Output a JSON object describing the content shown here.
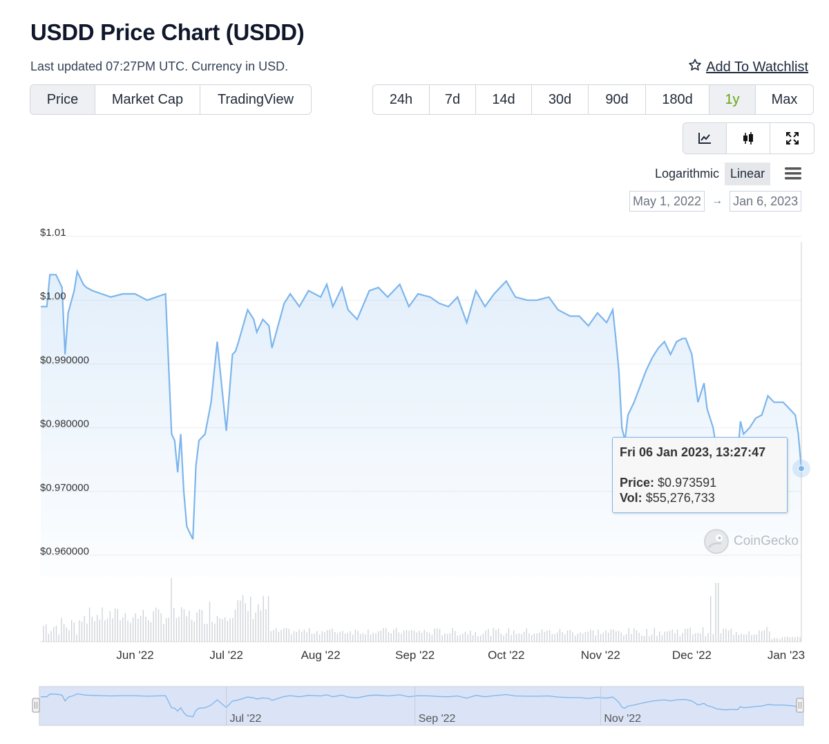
{
  "header": {
    "title": "USDD Price Chart (USDD)",
    "updated": "Last updated 07:27PM UTC. Currency in USD.",
    "watchlist": "Add To Watchlist"
  },
  "chart_types": [
    "Price",
    "Market Cap",
    "TradingView"
  ],
  "active_type": "Price",
  "ranges": [
    "24h",
    "7d",
    "14d",
    "30d",
    "90d",
    "180d",
    "1y",
    "Max"
  ],
  "active_range": "1y",
  "icons": [
    "line-chart-icon",
    "candlestick-icon",
    "fullscreen-icon"
  ],
  "scale": {
    "log": "Logarithmic",
    "linear": "Linear",
    "active": "Linear"
  },
  "date_range": {
    "from": "May 1, 2022",
    "to": "Jan 6, 2023"
  },
  "colors": {
    "line": "#7cb5ec",
    "active_range": "#65a30d",
    "volume": "#cfd3d8"
  },
  "tooltip": {
    "date": "Fri 06 Jan 2023, 13:27:47",
    "price_label": "Price:",
    "price": "$0.973591",
    "vol_label": "Vol:",
    "vol": "$55,276,733"
  },
  "watermark": "CoinGecko",
  "chart_data": {
    "type": "line",
    "title": "USDD Price Chart (USDD)",
    "x_range": [
      "2022-05-01",
      "2023-01-06"
    ],
    "ylim": [
      0.96,
      1.01
    ],
    "y_ticks": [
      {
        "value": 1.01,
        "label": "$1.01"
      },
      {
        "value": 1.0,
        "label": "$1.00"
      },
      {
        "value": 0.99,
        "label": "$0.990000"
      },
      {
        "value": 0.98,
        "label": "$0.980000"
      },
      {
        "value": 0.97,
        "label": "$0.970000"
      },
      {
        "value": 0.96,
        "label": "$0.960000"
      }
    ],
    "x_ticks": [
      {
        "date": "2022-06-01",
        "label": "Jun '22"
      },
      {
        "date": "2022-07-01",
        "label": "Jul '22"
      },
      {
        "date": "2022-08-01",
        "label": "Aug '22"
      },
      {
        "date": "2022-09-01",
        "label": "Sep '22"
      },
      {
        "date": "2022-10-01",
        "label": "Oct '22"
      },
      {
        "date": "2022-11-01",
        "label": "Nov '22"
      },
      {
        "date": "2022-12-01",
        "label": "Dec '22"
      },
      {
        "date": "2023-01-01",
        "label": "Jan '23"
      }
    ],
    "navigator_ticks": [
      {
        "date": "2022-07-01",
        "label": "Jul '22"
      },
      {
        "date": "2022-09-01",
        "label": "Sep '22"
      },
      {
        "date": "2022-11-01",
        "label": "Nov '22"
      }
    ],
    "series": [
      {
        "x": [
          "2022-05-01",
          "2022-05-03",
          "2022-05-04",
          "2022-05-06",
          "2022-05-08",
          "2022-05-09",
          "2022-05-10",
          "2022-05-12",
          "2022-05-13",
          "2022-05-15",
          "2022-05-16",
          "2022-05-18",
          "2022-05-21",
          "2022-05-24",
          "2022-05-28",
          "2022-06-01",
          "2022-06-05",
          "2022-06-08",
          "2022-06-11",
          "2022-06-13",
          "2022-06-14",
          "2022-06-15",
          "2022-06-16",
          "2022-06-17",
          "2022-06-18",
          "2022-06-20",
          "2022-06-21",
          "2022-06-22",
          "2022-06-24",
          "2022-06-26",
          "2022-06-28",
          "2022-07-01",
          "2022-07-03",
          "2022-07-04",
          "2022-07-05",
          "2022-07-08",
          "2022-07-10",
          "2022-07-11",
          "2022-07-13",
          "2022-07-15",
          "2022-07-16",
          "2022-07-20",
          "2022-07-22",
          "2022-07-25",
          "2022-07-28",
          "2022-08-01",
          "2022-08-03",
          "2022-08-05",
          "2022-08-08",
          "2022-08-10",
          "2022-08-13",
          "2022-08-17",
          "2022-08-20",
          "2022-08-23",
          "2022-08-27",
          "2022-08-30",
          "2022-09-02",
          "2022-09-06",
          "2022-09-09",
          "2022-09-12",
          "2022-09-15",
          "2022-09-18",
          "2022-09-21",
          "2022-09-24",
          "2022-09-27",
          "2022-10-01",
          "2022-10-04",
          "2022-10-08",
          "2022-10-11",
          "2022-10-15",
          "2022-10-18",
          "2022-10-22",
          "2022-10-25",
          "2022-10-28",
          "2022-10-31",
          "2022-11-03",
          "2022-11-05",
          "2022-11-06",
          "2022-11-07",
          "2022-11-08",
          "2022-11-09",
          "2022-11-10",
          "2022-11-12",
          "2022-11-14",
          "2022-11-16",
          "2022-11-18",
          "2022-11-20",
          "2022-11-22",
          "2022-11-24",
          "2022-11-26",
          "2022-11-28",
          "2022-11-29",
          "2022-12-01",
          "2022-12-03",
          "2022-12-05",
          "2022-12-06",
          "2022-12-08",
          "2022-12-09",
          "2022-12-10",
          "2022-12-12",
          "2022-12-13",
          "2022-12-14",
          "2022-12-16",
          "2022-12-17",
          "2022-12-18",
          "2022-12-20",
          "2022-12-22",
          "2022-12-24",
          "2022-12-26",
          "2022-12-28",
          "2022-12-31",
          "2023-01-02",
          "2023-01-04",
          "2023-01-05",
          "2023-01-06"
        ],
        "y": [
          0.999,
          0.999,
          1.004,
          1.004,
          1.002,
          0.9915,
          0.998,
          1.0015,
          1.0045,
          1.0025,
          1.002,
          1.0015,
          1.001,
          1.0005,
          1.001,
          1.001,
          1.0,
          1.0005,
          1.001,
          0.979,
          0.978,
          0.973,
          0.979,
          0.97,
          0.9645,
          0.9625,
          0.974,
          0.978,
          0.979,
          0.984,
          0.9935,
          0.9795,
          0.9915,
          0.992,
          0.9935,
          0.9985,
          0.997,
          0.995,
          0.997,
          0.996,
          0.9925,
          0.9995,
          1.001,
          0.999,
          1.0015,
          1.0005,
          1.0025,
          0.999,
          1.002,
          0.9985,
          0.997,
          1.0015,
          1.002,
          1.0005,
          1.0025,
          0.999,
          1.001,
          1.0005,
          0.9995,
          0.999,
          1.0005,
          0.9965,
          1.0015,
          0.999,
          1.001,
          1.003,
          1.0005,
          1.0,
          1.0,
          1.0005,
          0.9985,
          0.9975,
          0.9975,
          0.996,
          0.998,
          0.9965,
          0.9985,
          0.994,
          0.989,
          0.98,
          0.978,
          0.982,
          0.984,
          0.9865,
          0.989,
          0.991,
          0.9925,
          0.9935,
          0.9915,
          0.9935,
          0.994,
          0.994,
          0.9915,
          0.984,
          0.987,
          0.983,
          0.98,
          0.977,
          0.9765,
          0.975,
          0.9755,
          0.976,
          0.9755,
          0.981,
          0.979,
          0.98,
          0.9815,
          0.982,
          0.985,
          0.984,
          0.984,
          0.983,
          0.982,
          0.979,
          0.9736
        ]
      }
    ]
  }
}
